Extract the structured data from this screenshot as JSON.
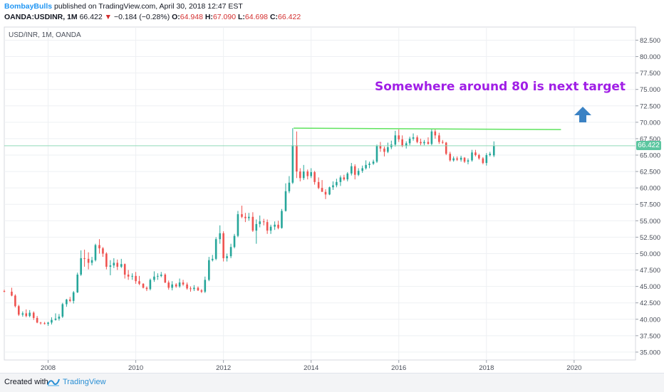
{
  "header": {
    "author": "BombayBulls",
    "published": "published on TradingView.com, April 30, 2018 12:47 EST",
    "symbol": "OANDA:USDINR, 1M",
    "last": "66.422",
    "change_arrow": "▼",
    "change": "−0.184 (−0.28%)",
    "o_label": "O:",
    "o_value": "64.948",
    "h_label": "H:",
    "h_value": "67.090",
    "l_label": "L:",
    "l_value": "64.698",
    "c_label": "C:",
    "c_value": "66.422"
  },
  "footer": {
    "created": "Created with",
    "brand": "TradingView",
    "logo_icon": "tradingview-logo-icon"
  },
  "colors": {
    "up": "#26a69a",
    "down": "#ef5350",
    "resistance": "#5ee35e",
    "annotation": "#a01ee6",
    "arrow": "#3b82c4",
    "last_price_line": "#8fd9b6"
  },
  "chart_data": {
    "type": "candlestick",
    "title": "USD/INR, 1M, OANDA",
    "annotation": "Somewhere around 80 is next target",
    "arrow_icon": "arrow-up-icon",
    "last_price_label": "66.422",
    "x_ticks": [
      "2008",
      "2010",
      "2012",
      "2014",
      "2016",
      "2018",
      "2020"
    ],
    "y_ticks": [
      "35.000",
      "37.500",
      "40.000",
      "42.500",
      "45.000",
      "47.500",
      "50.000",
      "52.500",
      "55.000",
      "57.500",
      "60.000",
      "62.500",
      "65.000",
      "67.500",
      "70.000",
      "72.500",
      "75.000",
      "77.500",
      "80.000",
      "82.500"
    ],
    "ylim": [
      33.8,
      84.5
    ],
    "xlim": [
      2007.0,
      2021.4
    ],
    "resistance_line": {
      "x_start": 2013.6,
      "x_end": 2019.7,
      "y": 69.1
    },
    "candles": [
      [
        2007.0,
        44.3,
        44.5,
        44.1,
        44.2
      ],
      [
        2007.17,
        44.2,
        44.8,
        43.5,
        43.6
      ],
      [
        2007.25,
        43.6,
        43.8,
        41.8,
        42.0
      ],
      [
        2007.33,
        42.0,
        42.2,
        40.5,
        40.7
      ],
      [
        2007.42,
        40.7,
        41.2,
        40.4,
        40.9
      ],
      [
        2007.5,
        40.9,
        41.5,
        40.3,
        40.5
      ],
      [
        2007.58,
        40.5,
        41.4,
        40.3,
        41.0
      ],
      [
        2007.67,
        41.0,
        41.2,
        39.9,
        40.2
      ],
      [
        2007.75,
        40.2,
        40.5,
        39.4,
        39.5
      ],
      [
        2007.83,
        39.5,
        39.6,
        39.2,
        39.4
      ],
      [
        2007.92,
        39.4,
        39.6,
        39.2,
        39.3
      ],
      [
        2008.0,
        39.3,
        39.6,
        39.0,
        39.5
      ],
      [
        2008.08,
        39.5,
        40.3,
        39.2,
        39.9
      ],
      [
        2008.17,
        39.9,
        40.9,
        39.8,
        40.1
      ],
      [
        2008.25,
        40.1,
        40.8,
        39.8,
        40.4
      ],
      [
        2008.33,
        40.4,
        42.5,
        40.2,
        42.3
      ],
      [
        2008.42,
        42.3,
        43.1,
        41.9,
        43.0
      ],
      [
        2008.5,
        43.0,
        43.4,
        42.6,
        42.8
      ],
      [
        2008.58,
        42.8,
        44.3,
        42.4,
        44.1
      ],
      [
        2008.67,
        44.1,
        47.1,
        44.0,
        46.8
      ],
      [
        2008.75,
        46.8,
        50.5,
        46.6,
        49.3
      ],
      [
        2008.83,
        49.3,
        50.6,
        48.0,
        49.2
      ],
      [
        2008.92,
        49.2,
        50.2,
        47.6,
        48.6
      ],
      [
        2009.0,
        48.6,
        49.5,
        48.2,
        49.0
      ],
      [
        2009.08,
        49.0,
        51.5,
        48.8,
        51.3
      ],
      [
        2009.17,
        51.3,
        52.2,
        50.0,
        50.8
      ],
      [
        2009.25,
        50.8,
        51.0,
        49.5,
        50.0
      ],
      [
        2009.33,
        50.0,
        50.2,
        47.6,
        48.0
      ],
      [
        2009.42,
        48.0,
        49.0,
        46.7,
        48.2
      ],
      [
        2009.5,
        48.2,
        49.3,
        47.8,
        48.6
      ],
      [
        2009.58,
        48.6,
        49.1,
        47.5,
        48.0
      ],
      [
        2009.67,
        48.0,
        49.2,
        47.8,
        48.4
      ],
      [
        2009.75,
        48.4,
        48.5,
        46.2,
        46.8
      ],
      [
        2009.83,
        46.8,
        47.5,
        46.0,
        46.5
      ],
      [
        2009.92,
        46.5,
        47.0,
        46.0,
        46.6
      ],
      [
        2010.0,
        46.6,
        47.2,
        45.4,
        45.8
      ],
      [
        2010.08,
        45.8,
        46.6,
        45.2,
        45.4
      ],
      [
        2010.17,
        45.4,
        45.5,
        44.7,
        44.8
      ],
      [
        2010.25,
        44.8,
        45.0,
        44.3,
        44.6
      ],
      [
        2010.33,
        44.6,
        46.2,
        44.4,
        46.0
      ],
      [
        2010.42,
        46.0,
        47.3,
        45.7,
        46.5
      ],
      [
        2010.5,
        46.5,
        47.0,
        46.0,
        46.6
      ],
      [
        2010.58,
        46.6,
        47.2,
        46.4,
        46.8
      ],
      [
        2010.67,
        46.8,
        47.0,
        45.5,
        45.6
      ],
      [
        2010.75,
        45.6,
        45.9,
        44.5,
        44.8
      ],
      [
        2010.83,
        44.8,
        45.8,
        44.4,
        45.3
      ],
      [
        2010.92,
        45.3,
        45.5,
        44.8,
        45.0
      ],
      [
        2011.0,
        45.0,
        46.2,
        44.8,
        45.6
      ],
      [
        2011.08,
        45.6,
        46.0,
        45.1,
        45.3
      ],
      [
        2011.17,
        45.3,
        45.6,
        44.5,
        44.7
      ],
      [
        2011.25,
        44.7,
        45.0,
        44.2,
        44.6
      ],
      [
        2011.33,
        44.6,
        45.2,
        44.3,
        44.8
      ],
      [
        2011.42,
        44.8,
        45.0,
        44.3,
        44.4
      ],
      [
        2011.5,
        44.4,
        44.6,
        44.0,
        44.2
      ],
      [
        2011.58,
        44.2,
        46.5,
        44.0,
        46.0
      ],
      [
        2011.67,
        46.0,
        49.5,
        45.8,
        49.0
      ],
      [
        2011.75,
        49.0,
        49.8,
        48.8,
        49.2
      ],
      [
        2011.83,
        49.2,
        52.5,
        49.0,
        52.2
      ],
      [
        2011.92,
        52.2,
        54.3,
        51.5,
        53.1
      ],
      [
        2012.0,
        53.1,
        53.4,
        48.8,
        49.3
      ],
      [
        2012.08,
        49.3,
        50.0,
        48.8,
        49.6
      ],
      [
        2012.17,
        49.6,
        51.5,
        49.3,
        51.0
      ],
      [
        2012.25,
        51.0,
        53.0,
        50.8,
        52.7
      ],
      [
        2012.33,
        52.7,
        56.5,
        52.5,
        56.0
      ],
      [
        2012.42,
        56.0,
        57.3,
        55.4,
        55.6
      ],
      [
        2012.5,
        55.6,
        56.2,
        54.8,
        55.4
      ],
      [
        2012.58,
        55.4,
        56.2,
        55.0,
        55.6
      ],
      [
        2012.67,
        55.6,
        56.3,
        53.3,
        53.5
      ],
      [
        2012.75,
        53.5,
        55.2,
        51.5,
        54.5
      ],
      [
        2012.83,
        54.5,
        55.8,
        54.0,
        54.9
      ],
      [
        2012.92,
        54.9,
        55.3,
        54.3,
        54.8
      ],
      [
        2013.0,
        54.8,
        55.2,
        53.0,
        53.5
      ],
      [
        2013.08,
        53.5,
        54.4,
        53.0,
        54.1
      ],
      [
        2013.17,
        54.1,
        54.9,
        53.6,
        54.4
      ],
      [
        2013.25,
        54.4,
        55.0,
        53.7,
        53.9
      ],
      [
        2013.33,
        53.9,
        56.8,
        53.8,
        56.5
      ],
      [
        2013.42,
        56.5,
        60.7,
        56.4,
        59.5
      ],
      [
        2013.5,
        59.5,
        61.8,
        59.2,
        60.8
      ],
      [
        2013.58,
        60.8,
        69.1,
        60.6,
        66.5
      ],
      [
        2013.67,
        66.5,
        68.6,
        61.5,
        62.5
      ],
      [
        2013.75,
        62.5,
        63.0,
        61.0,
        61.5
      ],
      [
        2013.83,
        61.5,
        63.5,
        61.2,
        62.5
      ],
      [
        2013.92,
        62.5,
        62.8,
        61.3,
        61.8
      ],
      [
        2014.0,
        61.8,
        63.0,
        61.5,
        62.4
      ],
      [
        2014.08,
        62.4,
        62.6,
        60.5,
        60.9
      ],
      [
        2014.17,
        60.9,
        61.6,
        59.8,
        60.0
      ],
      [
        2014.25,
        60.0,
        61.2,
        59.6,
        59.4
      ],
      [
        2014.33,
        59.4,
        59.8,
        58.3,
        59.0
      ],
      [
        2014.42,
        59.0,
        60.2,
        58.9,
        60.1
      ],
      [
        2014.5,
        60.1,
        61.0,
        59.7,
        60.4
      ],
      [
        2014.58,
        60.4,
        61.4,
        60.1,
        60.9
      ],
      [
        2014.67,
        60.9,
        61.9,
        60.3,
        61.6
      ],
      [
        2014.75,
        61.6,
        62.0,
        61.1,
        61.3
      ],
      [
        2014.83,
        61.3,
        62.4,
        61.0,
        62.2
      ],
      [
        2014.92,
        62.2,
        63.8,
        61.9,
        63.3
      ],
      [
        2015.0,
        63.3,
        63.6,
        61.3,
        62.0
      ],
      [
        2015.08,
        62.0,
        63.0,
        61.8,
        62.6
      ],
      [
        2015.17,
        62.6,
        63.4,
        62.3,
        63.0
      ],
      [
        2015.25,
        63.0,
        64.2,
        62.8,
        63.5
      ],
      [
        2015.33,
        63.5,
        64.0,
        63.0,
        63.7
      ],
      [
        2015.42,
        63.7,
        64.3,
        63.5,
        64.0
      ],
      [
        2015.5,
        64.0,
        66.6,
        63.8,
        66.4
      ],
      [
        2015.58,
        66.4,
        67.0,
        65.5,
        66.0
      ],
      [
        2015.67,
        66.0,
        66.3,
        64.8,
        65.5
      ],
      [
        2015.75,
        65.5,
        66.9,
        65.3,
        66.2
      ],
      [
        2015.83,
        66.2,
        67.2,
        65.9,
        66.6
      ],
      [
        2015.92,
        66.6,
        68.7,
        66.3,
        68.0
      ],
      [
        2016.0,
        68.0,
        68.9,
        67.0,
        67.4
      ],
      [
        2016.08,
        67.4,
        68.0,
        66.2,
        66.4
      ],
      [
        2016.17,
        66.4,
        67.1,
        66.0,
        66.8
      ],
      [
        2016.25,
        66.8,
        67.8,
        66.5,
        67.5
      ],
      [
        2016.33,
        67.5,
        68.3,
        67.2,
        67.7
      ],
      [
        2016.42,
        67.7,
        68.0,
        66.8,
        67.0
      ],
      [
        2016.5,
        67.0,
        67.5,
        66.5,
        66.8
      ],
      [
        2016.58,
        66.8,
        67.3,
        66.5,
        67.0
      ],
      [
        2016.67,
        67.0,
        67.7,
        66.6,
        66.7
      ],
      [
        2016.75,
        66.7,
        69.0,
        66.5,
        68.6
      ],
      [
        2016.83,
        68.6,
        69.0,
        67.5,
        68.0
      ],
      [
        2016.92,
        68.0,
        68.4,
        66.7,
        67.0
      ],
      [
        2017.0,
        67.0,
        67.3,
        66.7,
        66.9
      ],
      [
        2017.08,
        66.9,
        67.0,
        65.0,
        65.2
      ],
      [
        2017.17,
        65.2,
        65.5,
        64.0,
        64.2
      ],
      [
        2017.25,
        64.2,
        64.8,
        64.0,
        64.5
      ],
      [
        2017.33,
        64.5,
        64.8,
        64.1,
        64.3
      ],
      [
        2017.42,
        64.3,
        64.9,
        64.0,
        64.6
      ],
      [
        2017.5,
        64.6,
        64.7,
        63.8,
        64.0
      ],
      [
        2017.58,
        64.0,
        64.5,
        63.6,
        64.2
      ],
      [
        2017.67,
        64.2,
        65.8,
        64.0,
        65.4
      ],
      [
        2017.75,
        65.4,
        65.8,
        64.8,
        65.0
      ],
      [
        2017.83,
        65.0,
        65.2,
        64.3,
        64.5
      ],
      [
        2017.92,
        64.5,
        64.7,
        63.6,
        63.8
      ],
      [
        2018.0,
        63.8,
        65.3,
        63.4,
        65.0
      ],
      [
        2018.08,
        65.0,
        65.5,
        64.8,
        65.2
      ],
      [
        2018.17,
        64.948,
        67.09,
        64.698,
        66.422
      ]
    ]
  }
}
